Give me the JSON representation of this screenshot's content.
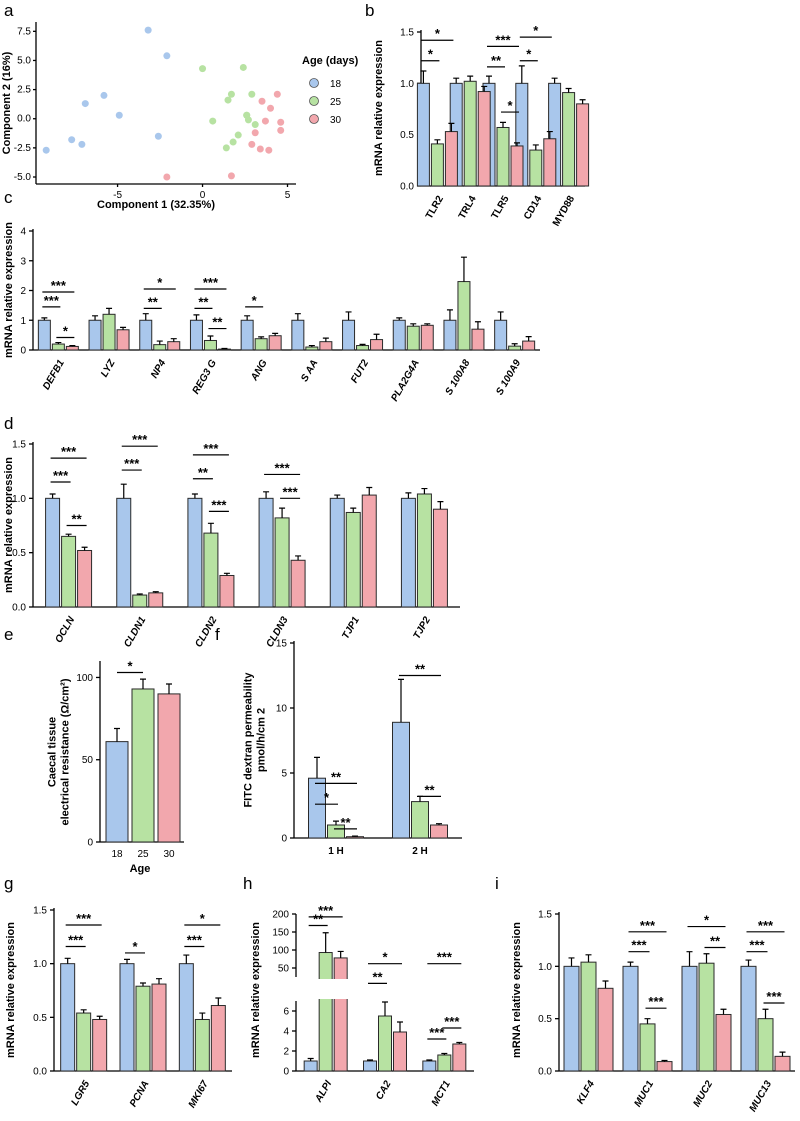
{
  "colors": {
    "c18": "#a9c7ec",
    "c25": "#b7e2a2",
    "c30": "#f2a7ad"
  },
  "chart_data": [
    {
      "id": "a",
      "type": "scatter",
      "xlabel": "Component 1 (32.35%)",
      "ylabel": "Component 2 (16%)",
      "xlim": [
        -9.8,
        5.5
      ],
      "ylim": [
        -5.6,
        8.3
      ],
      "xticks": [
        "-5",
        "0",
        "5"
      ],
      "xtickvals": [
        -5,
        0,
        5
      ],
      "yticks": [
        "7.5",
        "5.0",
        "2.5",
        "0.0",
        "-2.5",
        "-5.0"
      ],
      "ytickvals": [
        7.5,
        5,
        2.5,
        0,
        -2.5,
        -5
      ],
      "legend_title": "Age (days)",
      "legend": [
        "18",
        "25",
        "30"
      ],
      "series": [
        {
          "name": "18",
          "x": [
            -9.2,
            -7.7,
            -7.1,
            -6.9,
            -5.8,
            -4.9,
            -3.2,
            -2.6,
            -2.1
          ],
          "y": [
            -2.7,
            -1.8,
            -2.2,
            1.3,
            2.0,
            0.3,
            7.6,
            -1.5,
            5.4
          ]
        },
        {
          "name": "25",
          "x": [
            0.0,
            0.6,
            1.4,
            1.5,
            1.7,
            2.1,
            2.4,
            2.6,
            2.7,
            2.9,
            3.1,
            1.8,
            2.6
          ],
          "y": [
            4.3,
            -0.2,
            -2.5,
            1.6,
            2.1,
            -1.4,
            4.4,
            0.3,
            -0.1,
            2.1,
            -0.5,
            -2.0,
            0.3
          ]
        },
        {
          "name": "30",
          "x": [
            -2.1,
            1.7,
            2.9,
            3.1,
            3.4,
            3.7,
            3.9,
            4.0,
            4.4,
            4.6,
            4.6,
            3.5
          ],
          "y": [
            -5.0,
            -4.9,
            -2.2,
            -1.2,
            -2.6,
            -0.2,
            -2.7,
            0.9,
            2.1,
            -1.0,
            -0.3,
            1.5
          ]
        }
      ]
    },
    {
      "id": "b",
      "type": "bar",
      "ylabel": "mRNA relative expression",
      "ylim": [
        0,
        1.5
      ],
      "yticks": [
        "0.0",
        "0.5",
        "1.0",
        "1.5"
      ],
      "tickvals": [
        0,
        0.5,
        1.0,
        1.5
      ],
      "categories": [
        "TLR2",
        "TRL4",
        "TLR5",
        "CD14",
        "MYD88"
      ],
      "series": [
        {
          "name": "18",
          "values": [
            1.0,
            1.0,
            1.0,
            1.0,
            1.0
          ],
          "err": [
            0.12,
            0.05,
            0.07,
            0.17,
            0.05
          ]
        },
        {
          "name": "25",
          "values": [
            0.41,
            1.02,
            0.57,
            0.35,
            0.91
          ],
          "err": [
            0.04,
            0.05,
            0.05,
            0.05,
            0.04
          ]
        },
        {
          "name": "30",
          "values": [
            0.53,
            0.92,
            0.39,
            0.46,
            0.8
          ],
          "err": [
            0.08,
            0.05,
            0.03,
            0.07,
            0.04
          ]
        }
      ],
      "brackets": [
        {
          "cat": 0,
          "from": 0,
          "to": 1,
          "y": 1.22,
          "label": "*"
        },
        {
          "cat": 0,
          "from": 0,
          "to": 2,
          "y": 1.42,
          "label": "*"
        },
        {
          "cat": 2,
          "from": 0,
          "to": 1,
          "y": 1.16,
          "label": "**"
        },
        {
          "cat": 2,
          "from": 1,
          "to": 2,
          "y": 0.72,
          "label": "*"
        },
        {
          "cat": 2,
          "from": 0,
          "to": 2,
          "y": 1.36,
          "label": "***"
        },
        {
          "cat": 3,
          "from": 0,
          "to": 1,
          "y": 1.22,
          "label": "*"
        },
        {
          "cat": 3,
          "from": 0,
          "to": 2,
          "y": 1.45,
          "label": "*"
        }
      ]
    },
    {
      "id": "c",
      "type": "bar",
      "ylabel": "mRNA relative expression",
      "ylim": [
        0,
        4
      ],
      "yticks": [
        "0",
        "1",
        "2",
        "3",
        "4"
      ],
      "tickvals": [
        0,
        1,
        2,
        3,
        4
      ],
      "categories": [
        "DEFB1",
        "LYZ",
        "NP4",
        "REG3 G",
        "ANG",
        "S AA",
        "FUT2",
        "PLA2G4A",
        "S 100A8",
        "S 100A9"
      ],
      "series": [
        {
          "name": "18",
          "values": [
            1.0,
            1.0,
            1.0,
            1.0,
            1.0,
            1.0,
            1.0,
            1.0,
            1.0,
            1.0
          ],
          "err": [
            0.08,
            0.15,
            0.22,
            0.18,
            0.15,
            0.22,
            0.28,
            0.08,
            0.35,
            0.28
          ]
        },
        {
          "name": "25",
          "values": [
            0.2,
            1.2,
            0.18,
            0.32,
            0.38,
            0.1,
            0.15,
            0.8,
            2.3,
            0.13
          ]
        },
        {
          "name": "30",
          "values": [
            0.12,
            0.68,
            0.28,
            0.03,
            0.48,
            0.28,
            0.35,
            0.83,
            0.7,
            0.3
          ]
        }
      ],
      "err25": [
        0.05,
        0.2,
        0.12,
        0.15,
        0.06,
        0.05,
        0.04,
        0.08,
        0.82,
        0.08
      ],
      "err30": [
        0.03,
        0.08,
        0.1,
        0.02,
        0.08,
        0.12,
        0.18,
        0.05,
        0.25,
        0.15
      ],
      "brackets": [
        {
          "cat": 0,
          "from": 0,
          "to": 1,
          "y": 1.45,
          "label": "***"
        },
        {
          "cat": 0,
          "from": 1,
          "to": 2,
          "y": 0.42,
          "label": "*"
        },
        {
          "cat": 0,
          "from": 0,
          "to": 2,
          "y": 1.95,
          "label": "***"
        },
        {
          "cat": 2,
          "from": 0,
          "to": 1,
          "y": 1.4,
          "label": "**"
        },
        {
          "cat": 2,
          "from": 0,
          "to": 2,
          "y": 2.05,
          "label": "*"
        },
        {
          "cat": 3,
          "from": 0,
          "to": 1,
          "y": 1.4,
          "label": "**"
        },
        {
          "cat": 3,
          "from": 1,
          "to": 2,
          "y": 0.72,
          "label": "**"
        },
        {
          "cat": 3,
          "from": 0,
          "to": 2,
          "y": 2.05,
          "label": "***"
        },
        {
          "cat": 4,
          "from": 0,
          "to": 1,
          "y": 1.45,
          "label": "*"
        }
      ]
    },
    {
      "id": "d",
      "type": "bar",
      "ylabel": "mRNA relative expression",
      "ylim": [
        0,
        1.5
      ],
      "yticks": [
        "0.0",
        "0.5",
        "1.0",
        "1.5"
      ],
      "tickvals": [
        0,
        0.5,
        1.0,
        1.5
      ],
      "categories": [
        "OCLN",
        "CLDN1",
        "CLDN2",
        "CLDN3",
        "TJP1",
        "TJP2"
      ],
      "series": [
        {
          "name": "18",
          "values": [
            1.0,
            1.0,
            1.0,
            1.0,
            1.0,
            1.0
          ],
          "err": [
            0.04,
            0.13,
            0.04,
            0.06,
            0.03,
            0.05
          ]
        },
        {
          "name": "25",
          "values": [
            0.65,
            0.11,
            0.68,
            0.82,
            0.87,
            1.04
          ],
          "err": [
            0.02,
            0.01,
            0.09,
            0.09,
            0.04,
            0.05
          ]
        },
        {
          "name": "30",
          "values": [
            0.52,
            0.13,
            0.29,
            0.43,
            1.03,
            0.9
          ],
          "err": [
            0.03,
            0.01,
            0.02,
            0.04,
            0.07,
            0.07
          ]
        }
      ],
      "brackets": [
        {
          "cat": 0,
          "from": 0,
          "to": 1,
          "y": 1.15,
          "label": "***"
        },
        {
          "cat": 0,
          "from": 1,
          "to": 2,
          "y": 0.75,
          "label": "**"
        },
        {
          "cat": 0,
          "from": 0,
          "to": 2,
          "y": 1.37,
          "label": "***"
        },
        {
          "cat": 1,
          "from": 0,
          "to": 1,
          "y": 1.26,
          "label": "***"
        },
        {
          "cat": 1,
          "from": 0,
          "to": 2,
          "y": 1.48,
          "label": "***"
        },
        {
          "cat": 2,
          "from": 0,
          "to": 1,
          "y": 1.18,
          "label": "**"
        },
        {
          "cat": 2,
          "from": 1,
          "to": 2,
          "y": 0.88,
          "label": "***"
        },
        {
          "cat": 2,
          "from": 0,
          "to": 2,
          "y": 1.4,
          "label": "***"
        },
        {
          "cat": 3,
          "from": 1,
          "to": 2,
          "y": 1.0,
          "label": "***"
        },
        {
          "cat": 3,
          "from": 0,
          "to": 2,
          "y": 1.22,
          "label": "***"
        }
      ]
    },
    {
      "id": "e",
      "type": "bar",
      "ylabel_lines": [
        "Caecal tissue",
        "electrical resistance (Ω/cm²)"
      ],
      "xlabel": "Age",
      "ylim": [
        0,
        110
      ],
      "yticks": [
        "0",
        "50",
        "100"
      ],
      "tickvals": [
        0,
        50,
        100
      ],
      "categories": [
        "18",
        "25",
        "30"
      ],
      "values": [
        61,
        93,
        90
      ],
      "err": [
        8,
        6,
        6
      ],
      "brackets": [
        {
          "from": 0,
          "to": 1,
          "y": 103,
          "label": "*"
        }
      ]
    },
    {
      "id": "f",
      "type": "bar",
      "ylabel_lines": [
        "FITC dextran permeability",
        "pmol/h/cm 2"
      ],
      "ylim": [
        0,
        15
      ],
      "yticks": [
        "0",
        "5",
        "10",
        "15"
      ],
      "tickvals": [
        0,
        5,
        10,
        15
      ],
      "categories": [
        "1 H",
        "2 H"
      ],
      "series": [
        {
          "name": "18",
          "values": [
            4.6,
            8.9
          ],
          "err": [
            1.6,
            3.3
          ]
        },
        {
          "name": "25",
          "values": [
            1.0,
            2.8
          ],
          "err": [
            0.3,
            0.4
          ]
        },
        {
          "name": "30",
          "values": [
            0.1,
            1.0
          ],
          "err": [
            0.05,
            0.1
          ]
        }
      ],
      "brackets": [
        {
          "cat": 0,
          "from": 0,
          "to": 1,
          "y": 2.6,
          "label": "*"
        },
        {
          "cat": 0,
          "from": 1,
          "to": 2,
          "y": 0.7,
          "label": "**"
        },
        {
          "cat": 0,
          "from": 0,
          "to": 2,
          "y": 4.2,
          "label": "**"
        },
        {
          "cat": 1,
          "from": 1,
          "to": 2,
          "y": 3.2,
          "label": "**"
        },
        {
          "cat": 1,
          "from": 0,
          "to": 2,
          "y": 12.5,
          "label": "**"
        }
      ]
    },
    {
      "id": "g",
      "type": "bar",
      "ylabel": "mRNA relative expression",
      "ylim": [
        0,
        1.5
      ],
      "yticks": [
        "0.0",
        "0.5",
        "1.0",
        "1.5"
      ],
      "tickvals": [
        0,
        0.5,
        1.0,
        1.5
      ],
      "categories": [
        "LGR5",
        "PCNA",
        "MKI67"
      ],
      "series": [
        {
          "name": "18",
          "values": [
            1.0,
            1.0,
            1.0
          ],
          "err": [
            0.05,
            0.04,
            0.08
          ]
        },
        {
          "name": "25",
          "values": [
            0.54,
            0.79,
            0.48
          ],
          "err": [
            0.03,
            0.03,
            0.06
          ]
        },
        {
          "name": "30",
          "values": [
            0.48,
            0.81,
            0.61
          ],
          "err": [
            0.03,
            0.05,
            0.07
          ]
        }
      ],
      "brackets": [
        {
          "cat": 0,
          "from": 0,
          "to": 1,
          "y": 1.16,
          "label": "***"
        },
        {
          "cat": 0,
          "from": 0,
          "to": 2,
          "y": 1.36,
          "label": "***"
        },
        {
          "cat": 1,
          "from": 0,
          "to": 1,
          "y": 1.1,
          "label": "*"
        },
        {
          "cat": 2,
          "from": 0,
          "to": 1,
          "y": 1.16,
          "label": "***"
        },
        {
          "cat": 2,
          "from": 0,
          "to": 2,
          "y": 1.36,
          "label": "*"
        }
      ]
    },
    {
      "id": "h",
      "type": "bar",
      "ylabel": "mRNA relative expression",
      "axis_break": true,
      "upper_ticks": [
        "50",
        "100",
        "150",
        "200"
      ],
      "upper_tickvals": [
        50,
        100,
        150,
        200
      ],
      "lower_ticks": [
        "0",
        "2",
        "4",
        "6"
      ],
      "lower_tickvals": [
        0,
        2,
        4,
        6
      ],
      "categories": [
        "ALPI",
        "CA2",
        "MCT1"
      ],
      "series": [
        {
          "name": "18",
          "values": [
            1.0,
            1.0,
            1.0
          ],
          "err": [
            0.25,
            0.1,
            0.1
          ]
        },
        {
          "name": "25",
          "values": [
            93,
            5.5,
            1.6
          ],
          "err": [
            55,
            1.4,
            0.15
          ]
        },
        {
          "name": "30",
          "values": [
            78,
            3.9,
            2.7
          ],
          "err": [
            18,
            1.0,
            0.15
          ]
        }
      ],
      "brackets": [
        {
          "cat": 0,
          "from": 0,
          "to": 1,
          "y": 168,
          "label": "**"
        },
        {
          "cat": 0,
          "from": 0,
          "to": 2,
          "y": 192,
          "label": "***"
        },
        {
          "cat": 1,
          "from": 0,
          "to": 1,
          "y": 7.2,
          "label": "**"
        },
        {
          "cat": 1,
          "from": 0,
          "to": 2,
          "y": 62,
          "label": "*"
        },
        {
          "cat": 2,
          "from": 0,
          "to": 1,
          "y": 3.2,
          "label": "***"
        },
        {
          "cat": 2,
          "from": 1,
          "to": 2,
          "y": 4.3,
          "label": "***"
        },
        {
          "cat": 2,
          "from": 0,
          "to": 2,
          "y": 62,
          "label": "***"
        }
      ]
    },
    {
      "id": "i",
      "type": "bar",
      "ylabel": "mRNA relative expression",
      "ylim": [
        0,
        1.5
      ],
      "yticks": [
        "0.0",
        "0.5",
        "1.0",
        "1.5"
      ],
      "tickvals": [
        0,
        0.5,
        1.0,
        1.5
      ],
      "categories": [
        "KLF4",
        "MUC1",
        "MUC2",
        "MUC13"
      ],
      "series": [
        {
          "name": "18",
          "values": [
            1.0,
            1.0,
            1.0,
            1.0
          ],
          "err": [
            0.08,
            0.04,
            0.14,
            0.06
          ]
        },
        {
          "name": "25",
          "values": [
            1.04,
            0.45,
            1.03,
            0.5
          ],
          "err": [
            0.07,
            0.05,
            0.09,
            0.09
          ]
        },
        {
          "name": "30",
          "values": [
            0.79,
            0.09,
            0.54,
            0.14
          ],
          "err": [
            0.07,
            0.01,
            0.05,
            0.04
          ]
        }
      ],
      "brackets": [
        {
          "cat": 1,
          "from": 0,
          "to": 1,
          "y": 1.14,
          "label": "***"
        },
        {
          "cat": 1,
          "from": 1,
          "to": 2,
          "y": 0.6,
          "label": "***"
        },
        {
          "cat": 1,
          "from": 0,
          "to": 2,
          "y": 1.33,
          "label": "***"
        },
        {
          "cat": 2,
          "from": 1,
          "to": 2,
          "y": 1.18,
          "label": "**"
        },
        {
          "cat": 2,
          "from": 0,
          "to": 2,
          "y": 1.38,
          "label": "*"
        },
        {
          "cat": 3,
          "from": 0,
          "to": 1,
          "y": 1.14,
          "label": "***"
        },
        {
          "cat": 3,
          "from": 1,
          "to": 2,
          "y": 0.65,
          "label": "***"
        },
        {
          "cat": 3,
          "from": 0,
          "to": 2,
          "y": 1.33,
          "label": "***"
        }
      ]
    }
  ],
  "panel_labels": [
    "a",
    "b",
    "c",
    "d",
    "e",
    "f",
    "g",
    "h",
    "i"
  ]
}
